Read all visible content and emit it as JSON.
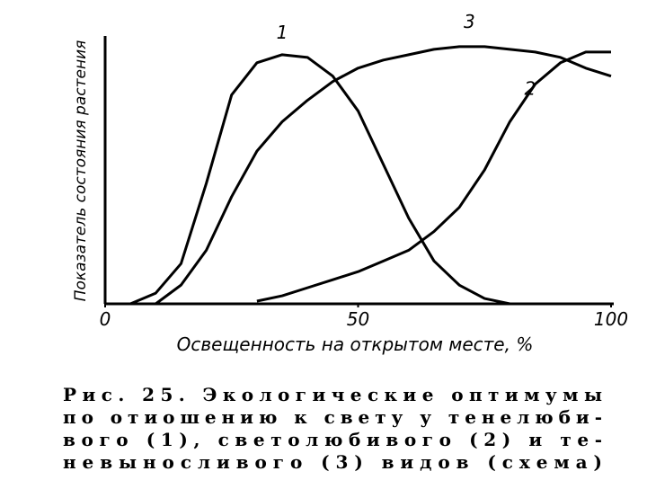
{
  "chart_data": {
    "type": "line",
    "x_label": "Освещенность на открытом месте, %",
    "y_label": "Показатель состояния растения",
    "x": [
      0,
      5,
      10,
      15,
      20,
      25,
      30,
      35,
      40,
      45,
      50,
      55,
      60,
      65,
      70,
      75,
      80,
      85,
      90,
      95,
      100
    ],
    "series": [
      {
        "name": "1",
        "color": "#000000",
        "values": [
          0,
          0,
          4,
          15,
          45,
          78,
          90,
          93,
          92,
          85,
          72,
          52,
          32,
          16,
          7,
          2,
          0,
          null,
          null,
          null,
          null
        ]
      },
      {
        "name": "2",
        "color": "#000000",
        "values": [
          null,
          null,
          null,
          null,
          null,
          null,
          1,
          3,
          6,
          9,
          12,
          16,
          20,
          27,
          36,
          50,
          68,
          82,
          90,
          94,
          94
        ]
      },
      {
        "name": "3",
        "color": "#000000",
        "values": [
          null,
          null,
          0,
          7,
          20,
          40,
          57,
          68,
          76,
          83,
          88,
          91,
          93,
          95,
          96,
          96,
          95,
          94,
          92,
          88,
          85
        ]
      }
    ],
    "xlim": [
      0,
      100
    ],
    "xticks": [
      0,
      50,
      100
    ],
    "ylim": [
      0,
      100
    ],
    "grid": false,
    "caption": [
      "Рис. 25. Экологические оптимумы",
      "по отиошению к свету у тенелюби-",
      "вого (1), светолюбивого (2) и те-",
      "невыносливого (3) видов (схема)"
    ]
  }
}
